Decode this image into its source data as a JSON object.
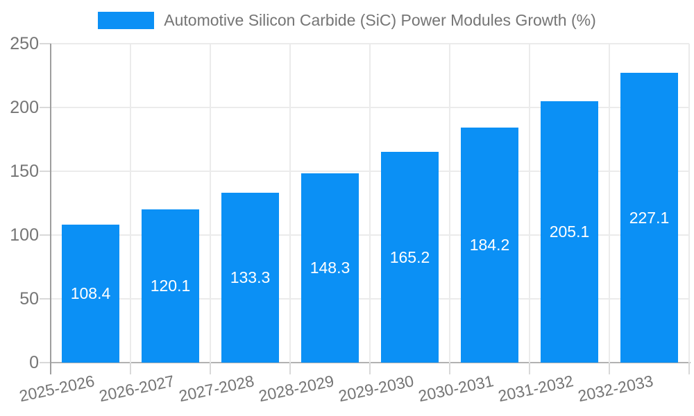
{
  "legend": {
    "label": "Automotive Silicon Carbide (SiC) Power Modules Growth (%)"
  },
  "colors": {
    "bar": "#0b90f5",
    "axis_y": "#9e9e9e",
    "axis_x": "#b1b1b1",
    "grid": "#ebebeb",
    "tick": "#d9d9d9",
    "text": "#757575",
    "value_label": "#ffffff",
    "background": "#ffffff"
  },
  "chart_data": {
    "type": "bar",
    "title": "Automotive Silicon Carbide (SiC) Power Modules Growth (%)",
    "categories": [
      "2025-2026",
      "2026-2027",
      "2027-2028",
      "2028-2029",
      "2029-2030",
      "2030-2031",
      "2031-2032",
      "2032-2033"
    ],
    "values": [
      108.4,
      120.1,
      133.3,
      148.3,
      165.2,
      184.2,
      205.1,
      227.1
    ],
    "xlabel": "",
    "ylabel": "",
    "ylim": [
      0,
      250
    ],
    "yticks": [
      0,
      50,
      100,
      150,
      200,
      250
    ],
    "grid": true,
    "legend_position": "top",
    "value_label_position": "inside-middle",
    "x_label_rotation_deg": -12
  }
}
